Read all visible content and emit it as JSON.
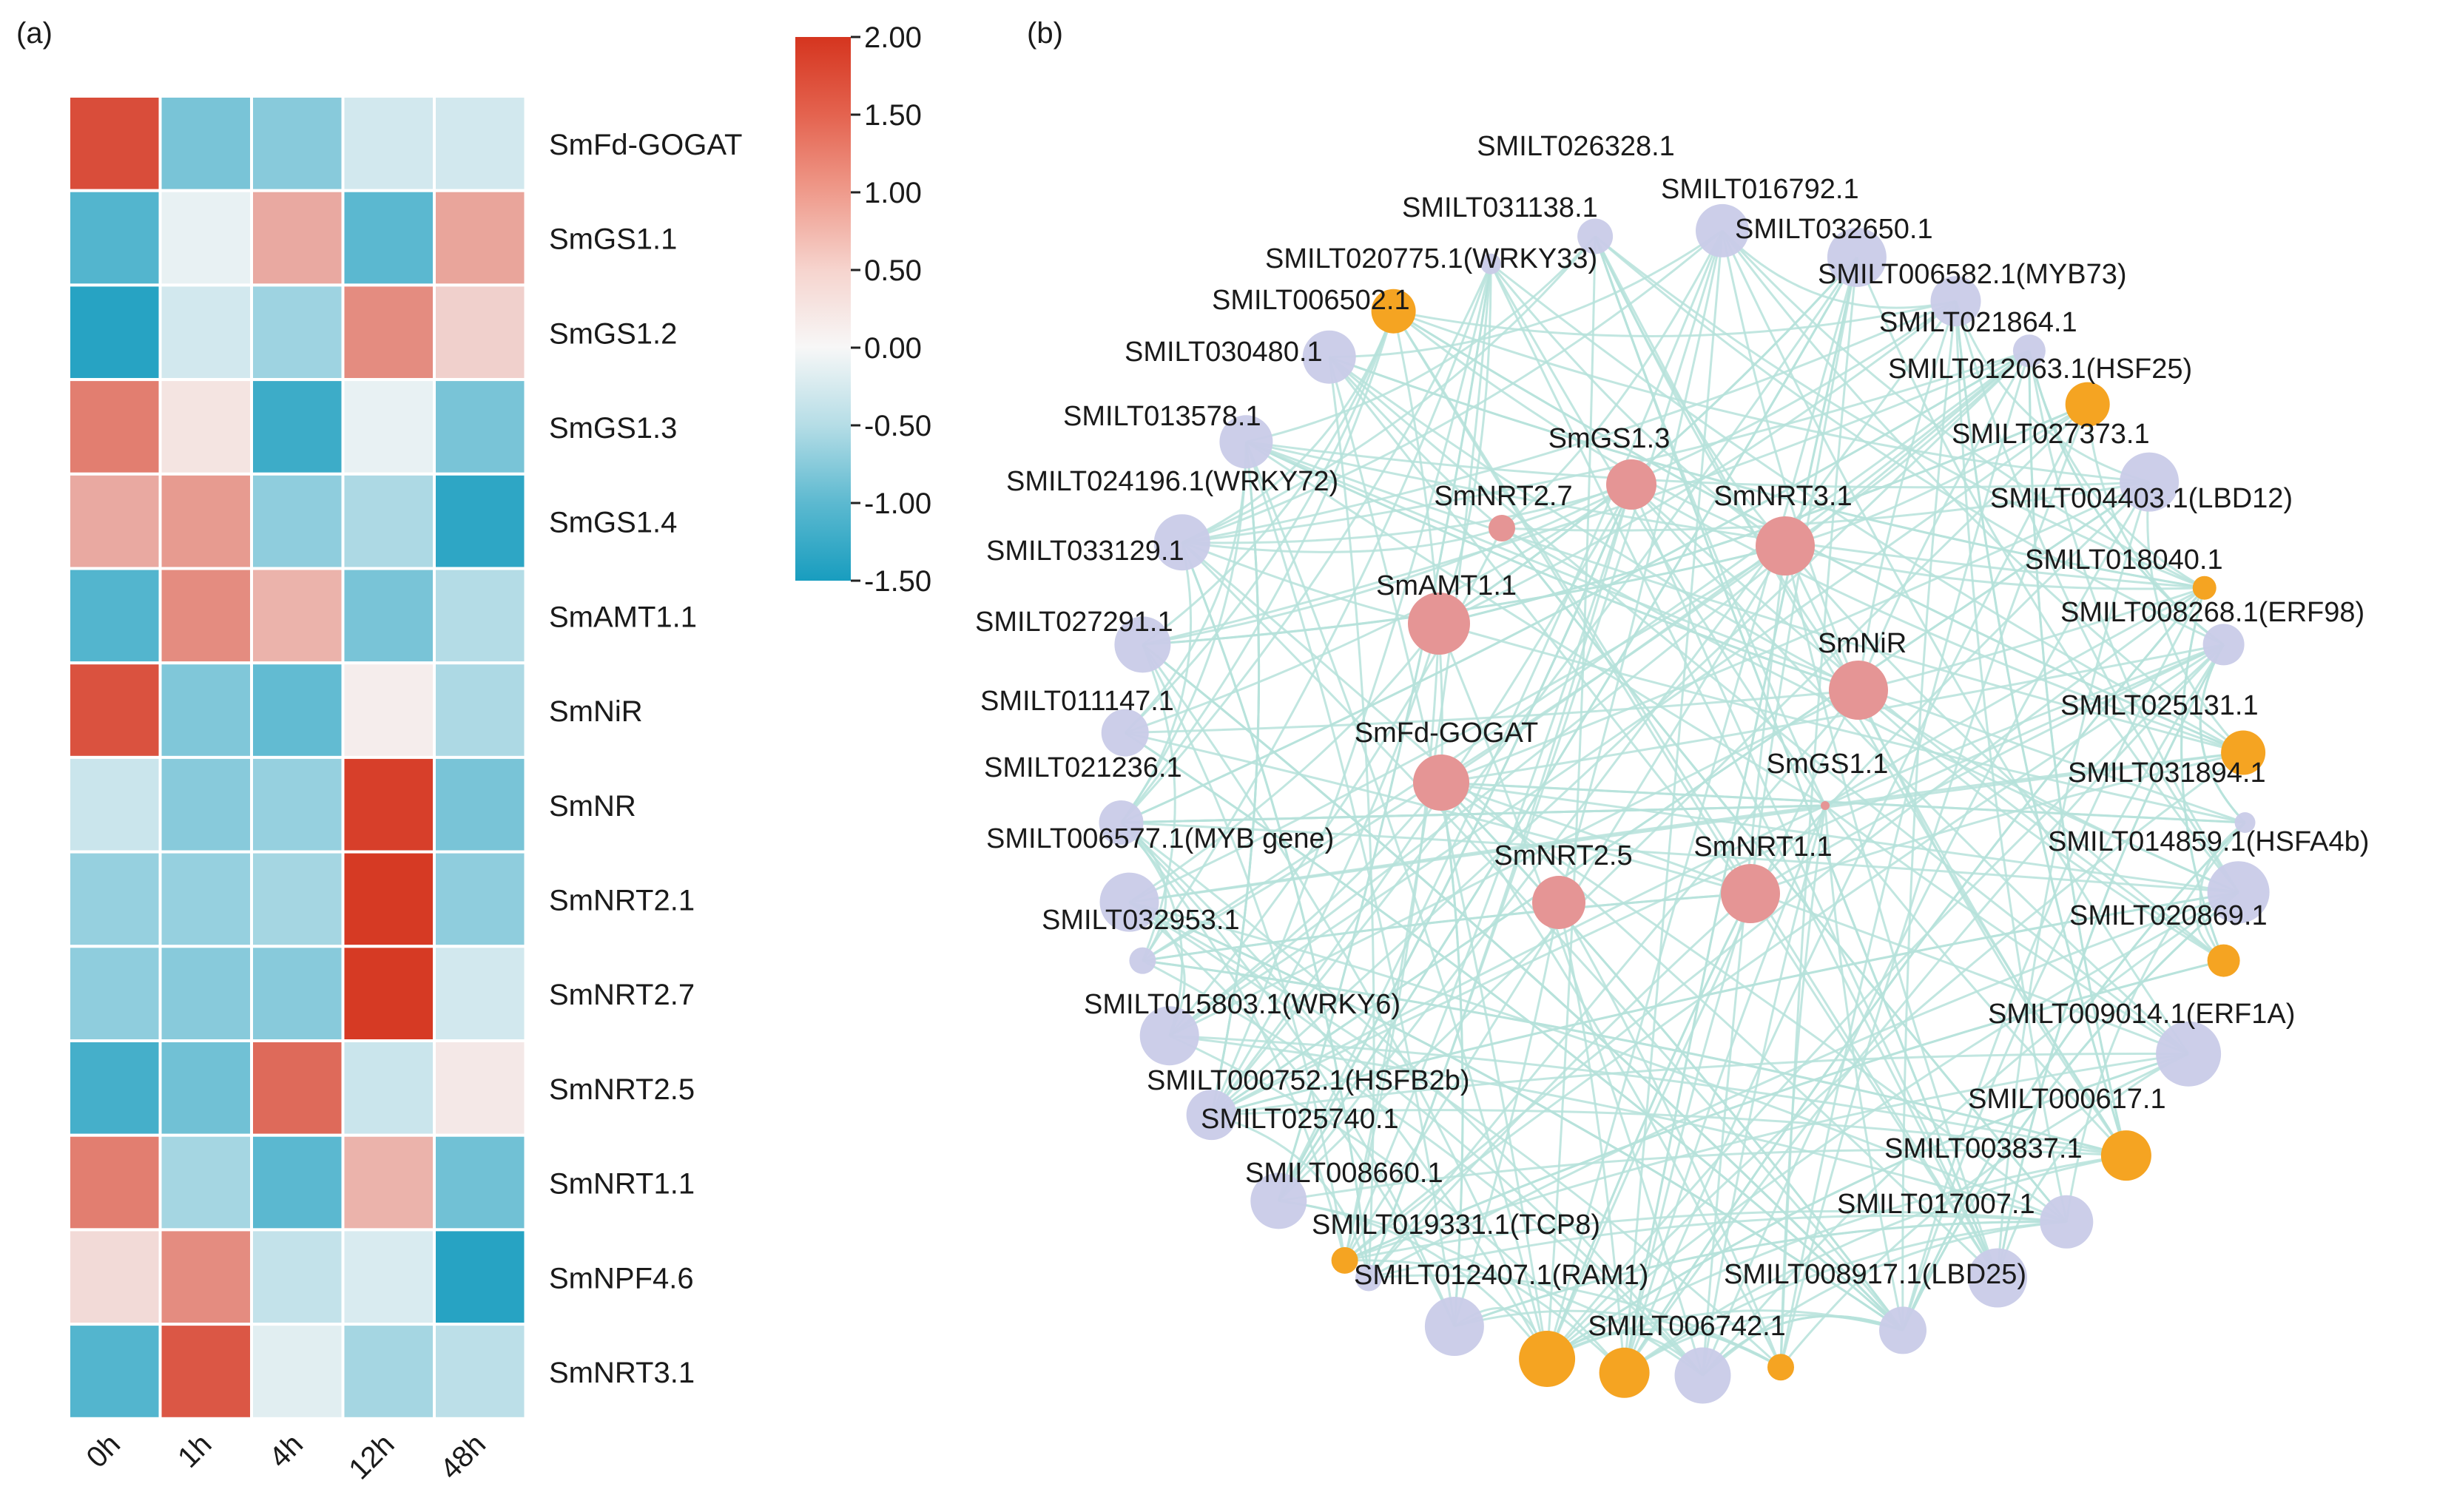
{
  "panels": {
    "a_label": "(a)",
    "b_label": "(b)"
  },
  "colors": {
    "scale_high": "#d5351f",
    "scale_mid": "#f7f7f7",
    "scale_low": "#189dbf",
    "network_edge": "#b6e2da",
    "node_lncrna": "#c9cbe8",
    "node_tf": "#f5a422",
    "node_nitrogen_gene": "#e59595"
  },
  "chart_data": [
    {
      "type": "heatmap",
      "title": "",
      "columns": [
        "0h",
        "1h",
        "4h",
        "12h",
        "48h"
      ],
      "rows": [
        "SmFd-GOGAT",
        "SmGS1.1",
        "SmGS1.2",
        "SmGS1.3",
        "SmGS1.4",
        "SmAMT1.1",
        "SmNiR",
        "SmNR",
        "SmNRT2.1",
        "SmNRT2.7",
        "SmNRT2.5",
        "SmNRT1.1",
        "SmNPF4.6",
        "SmNRT3.1"
      ],
      "values": [
        [
          1.75,
          -0.85,
          -0.75,
          -0.25,
          -0.25
        ],
        [
          -1.1,
          -0.1,
          0.8,
          -1.05,
          0.85
        ],
        [
          -1.4,
          -0.25,
          -0.6,
          1.1,
          0.4
        ],
        [
          1.25,
          0.2,
          -1.25,
          -0.1,
          -0.85
        ],
        [
          0.8,
          0.95,
          -0.7,
          -0.5,
          -1.35
        ],
        [
          -1.1,
          1.1,
          0.7,
          -0.85,
          -0.45
        ],
        [
          1.7,
          -0.8,
          -1.0,
          0.1,
          -0.5
        ],
        [
          -0.3,
          -0.75,
          -0.65,
          1.9,
          -0.85
        ],
        [
          -0.65,
          -0.65,
          -0.55,
          1.95,
          -0.7
        ],
        [
          -0.7,
          -0.75,
          -0.75,
          1.95,
          -0.25
        ],
        [
          -1.2,
          -0.9,
          1.45,
          -0.3,
          0.15
        ],
        [
          1.25,
          -0.55,
          -1.05,
          0.7,
          -0.9
        ],
        [
          0.3,
          1.1,
          -0.35,
          -0.2,
          -1.4
        ],
        [
          -1.1,
          1.65,
          -0.15,
          -0.55,
          -0.4
        ]
      ],
      "color_scale": {
        "min": -1.5,
        "max": 2.0,
        "ticks": [
          "2.00",
          "1.50",
          "1.00",
          "0.50",
          "0.00",
          "-0.50",
          "-1.00",
          "-1.50"
        ]
      }
    },
    {
      "type": "network",
      "title": "",
      "nodes": [
        {
          "id": "SMILT026328.1",
          "group": "lncRNA",
          "size": 24,
          "ring_angle": -99
        },
        {
          "id": "SMILT031138.1",
          "group": "lncRNA",
          "size": 14,
          "ring_angle": -110
        },
        {
          "id": "SMILT016792.1",
          "group": "lncRNA",
          "size": 36,
          "ring_angle": -86
        },
        {
          "id": "SMILT032650.1",
          "group": "lncRNA",
          "size": 40,
          "ring_angle": -72
        },
        {
          "id": "SMILT020775.1(WRKY33)",
          "group": "TF",
          "size": 30,
          "ring_angle": -121
        },
        {
          "id": "SMILT006582.1(MYB73)",
          "group": "lncRNA",
          "size": 34,
          "ring_angle": -61
        },
        {
          "id": "SMILT006502.1",
          "group": "lncRNA",
          "size": 36,
          "ring_angle": -129
        },
        {
          "id": "SMILT021864.1",
          "group": "lncRNA",
          "size": 22,
          "ring_angle": -52
        },
        {
          "id": "SMILT030480.1",
          "group": "lncRNA",
          "size": 36,
          "ring_angle": -141
        },
        {
          "id": "SMILT012063.1(HSF25)",
          "group": "TF",
          "size": 30,
          "ring_angle": -44
        },
        {
          "id": "SMILT013578.1",
          "group": "lncRNA",
          "size": 38,
          "ring_angle": -153
        },
        {
          "id": "SMILT027373.1",
          "group": "lncRNA",
          "size": 40,
          "ring_angle": -34
        },
        {
          "id": "SMILT024196.1(WRKY72)",
          "group": "lncRNA",
          "size": 38,
          "ring_angle": -164
        },
        {
          "id": "SMILT004403.1(LBD12)",
          "group": "TF",
          "size": 16,
          "ring_angle": -22
        },
        {
          "id": "SMILT033129.1",
          "group": "lncRNA",
          "size": 32,
          "ring_angle": -173
        },
        {
          "id": "SMILT018040.1",
          "group": "lncRNA",
          "size": 28,
          "ring_angle": -16
        },
        {
          "id": "SMILT027291.1",
          "group": "lncRNA",
          "size": 30,
          "ring_angle": 178
        },
        {
          "id": "SMILT008268.1(ERF98)",
          "group": "TF",
          "size": 30,
          "ring_angle": -5
        },
        {
          "id": "SMILT011147.1",
          "group": "lncRNA",
          "size": 40,
          "ring_angle": 170
        },
        {
          "id": "SMILT025131.1",
          "group": "lncRNA",
          "size": 14,
          "ring_angle": 2
        },
        {
          "id": "SMILT021236.1",
          "group": "lncRNA",
          "size": 18,
          "ring_angle": 164
        },
        {
          "id": "SMILT031894.1",
          "group": "lncRNA",
          "size": 42,
          "ring_angle": 9
        },
        {
          "id": "SMILT006577.1(MYB gene)",
          "group": "lncRNA",
          "size": 40,
          "ring_angle": 156
        },
        {
          "id": "SMILT014859.1(HSFA4b)",
          "group": "TF",
          "size": 22,
          "ring_angle": 16
        },
        {
          "id": "SMILT032953.1",
          "group": "lncRNA",
          "size": 34,
          "ring_angle": 147
        },
        {
          "id": "SMILT020869.1",
          "group": "lncRNA",
          "size": 44,
          "ring_angle": 26
        },
        {
          "id": "SMILT015803.1(WRKY6)",
          "group": "lncRNA",
          "size": 38,
          "ring_angle": 136
        },
        {
          "id": "SMILT009014.1(ERF1A)",
          "group": "TF",
          "size": 34,
          "ring_angle": 38
        },
        {
          "id": "SMILT000752.1(HSFB2b)",
          "group": "TF",
          "size": 18,
          "ring_angle": 127
        },
        {
          "id": "SMILT000617.1",
          "group": "lncRNA",
          "size": 36,
          "ring_angle": 47
        },
        {
          "id": "SMILT025740.1",
          "group": "lncRNA",
          "size": 18,
          "ring_angle": 124
        },
        {
          "id": "SMILT003837.1",
          "group": "lncRNA",
          "size": 40,
          "ring_angle": 56
        },
        {
          "id": "SMILT008660.1",
          "group": "lncRNA",
          "size": 40,
          "ring_angle": 114
        },
        {
          "id": "SMILT017007.1",
          "group": "lncRNA",
          "size": 32,
          "ring_angle": 67
        },
        {
          "id": "SMILT019331.1(TCP8)",
          "group": "TF",
          "size": 38,
          "ring_angle": 104
        },
        {
          "id": "SMILT012407.1(RAM1)",
          "group": "TF",
          "size": 34,
          "ring_angle": 96
        },
        {
          "id": "SMILT008917.1(LBD25)",
          "group": "TF",
          "size": 18,
          "ring_angle": 80
        },
        {
          "id": "SMILT006742.1",
          "group": "lncRNA",
          "size": 38,
          "ring_angle": 88
        },
        {
          "id": "SmGS1.3",
          "group": "nitrogen_gene",
          "size": 34
        },
        {
          "id": "SmNRT2.7",
          "group": "nitrogen_gene",
          "size": 18
        },
        {
          "id": "SmNRT3.1",
          "group": "nitrogen_gene",
          "size": 40
        },
        {
          "id": "SmAMT1.1",
          "group": "nitrogen_gene",
          "size": 42
        },
        {
          "id": "SmNiR",
          "group": "nitrogen_gene",
          "size": 40
        },
        {
          "id": "SmFd-GOGAT",
          "group": "nitrogen_gene",
          "size": 38
        },
        {
          "id": "SmGS1.1",
          "group": "nitrogen_gene",
          "size": 6
        },
        {
          "id": "SmNRT2.5",
          "group": "nitrogen_gene",
          "size": 36
        },
        {
          "id": "SmNRT1.1",
          "group": "nitrogen_gene",
          "size": 40
        }
      ]
    }
  ]
}
